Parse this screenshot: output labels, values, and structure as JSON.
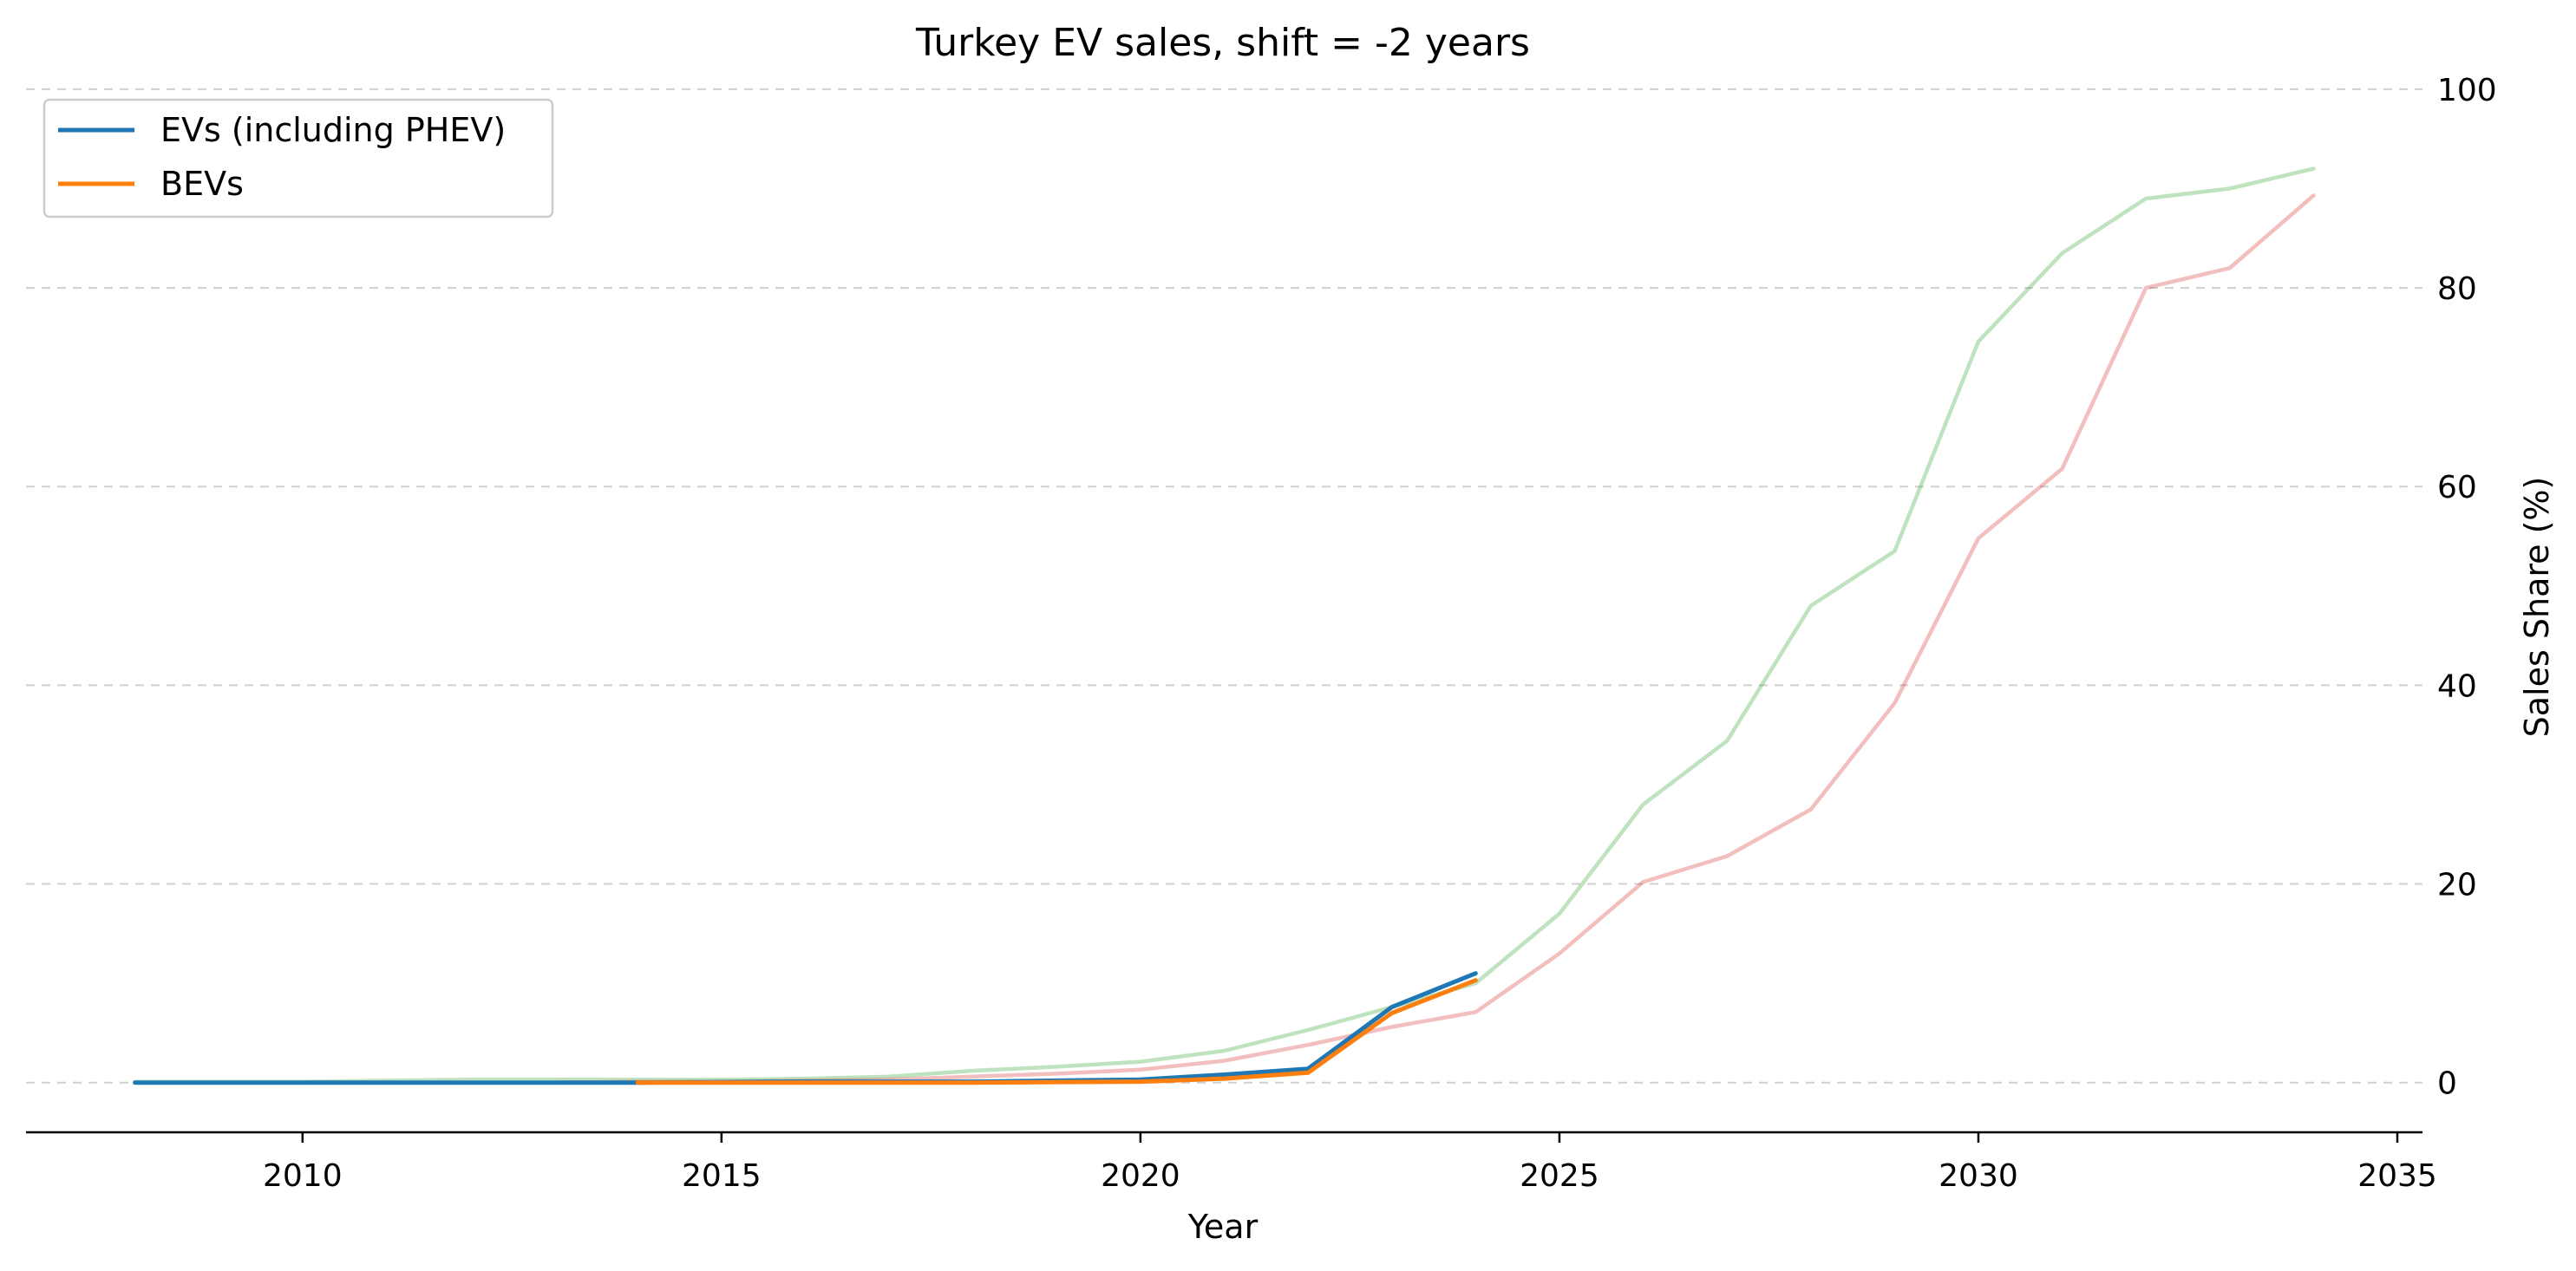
{
  "chart_data": {
    "type": "line",
    "title": "Turkey EV sales, shift = -2 years",
    "xlabel": "Year",
    "ylabel": "Sales Share (%)",
    "xlim": [
      2006.7,
      2035.3
    ],
    "ylim": [
      -5,
      102
    ],
    "x_ticks": [
      2010,
      2015,
      2020,
      2025,
      2030,
      2035
    ],
    "y_ticks": [
      0,
      20,
      40,
      60,
      80,
      100
    ],
    "y_axis_side": "right",
    "grid": "horizontal dashed",
    "legend_position": "top-left",
    "series": [
      {
        "name": "EVs (including PHEV)",
        "color": "#1f77b4",
        "in_legend": true,
        "x": [
          2008,
          2009,
          2010,
          2011,
          2012,
          2013,
          2014,
          2015,
          2016,
          2017,
          2018,
          2019,
          2020,
          2021,
          2022,
          2023,
          2024
        ],
        "y": [
          0,
          0,
          0,
          0,
          0,
          0,
          0,
          0.05,
          0.1,
          0.1,
          0.1,
          0.2,
          0.3,
          0.8,
          1.4,
          7.6,
          11.0
        ]
      },
      {
        "name": "BEVs",
        "color": "#ff7f0e",
        "in_legend": true,
        "x": [
          2014,
          2015,
          2016,
          2017,
          2018,
          2019,
          2020,
          2021,
          2022,
          2023,
          2024
        ],
        "y": [
          0,
          0,
          0,
          0,
          0,
          0.05,
          0.1,
          0.4,
          1.0,
          7.0,
          10.3
        ]
      },
      {
        "color": "#2ca02c",
        "opacity": 0.3,
        "in_legend": false,
        "x": [
          2008,
          2009,
          2010,
          2011,
          2012,
          2013,
          2014,
          2015,
          2016,
          2017,
          2018,
          2019,
          2020,
          2021,
          2022,
          2023,
          2024,
          2025,
          2026,
          2027,
          2028,
          2029,
          2030,
          2031,
          2032,
          2033,
          2034
        ],
        "y": [
          0.1,
          0.1,
          0.1,
          0.2,
          0.3,
          0.3,
          0.3,
          0.3,
          0.4,
          0.6,
          1.2,
          1.6,
          2.1,
          3.2,
          5.3,
          7.6,
          10.0,
          17.0,
          28.0,
          34.4,
          48.0,
          53.5,
          74.6,
          83.5,
          89.0,
          90.0,
          92.0
        ]
      },
      {
        "color": "#d62728",
        "opacity": 0.3,
        "in_legend": false,
        "x": [
          2008,
          2009,
          2010,
          2011,
          2012,
          2013,
          2014,
          2015,
          2016,
          2017,
          2018,
          2019,
          2020,
          2021,
          2022,
          2023,
          2024,
          2025,
          2026,
          2027,
          2028,
          2029,
          2030,
          2031,
          2032,
          2033,
          2034
        ],
        "y": [
          0,
          0,
          0,
          0,
          0,
          0,
          0.1,
          0.1,
          0.2,
          0.3,
          0.6,
          0.9,
          1.3,
          2.2,
          3.8,
          5.6,
          7.1,
          13.0,
          20.2,
          22.8,
          27.5,
          38.2,
          54.8,
          61.8,
          80.0,
          82.0,
          89.3
        ]
      }
    ]
  }
}
